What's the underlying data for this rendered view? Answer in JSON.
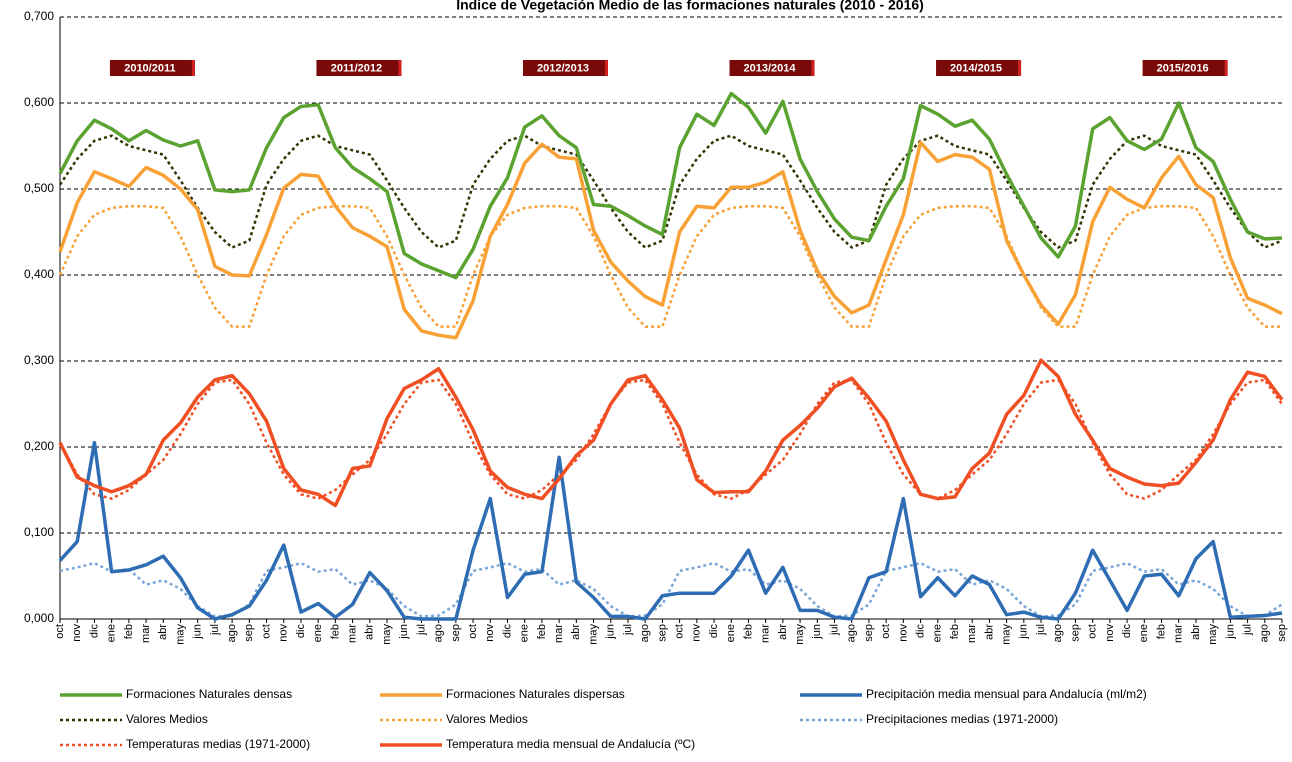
{
  "chart_data": {
    "type": "line",
    "title": "Índice de Vegetación Medio de las formaciones naturales (2010 - 2016)",
    "season_labels": [
      "2010/2011",
      "2011/2012",
      "2012/2013",
      "2013/2014",
      "2014/2015",
      "2015/2016"
    ],
    "categories": [
      "oct",
      "nov",
      "dic",
      "ene",
      "feb",
      "mar",
      "abr",
      "may",
      "jun",
      "jul",
      "ago",
      "sep",
      "oct",
      "nov",
      "dic",
      "ene",
      "feb",
      "mar",
      "abr",
      "may",
      "jun",
      "jul",
      "ago",
      "sep",
      "oct",
      "nov",
      "dic",
      "ene",
      "feb",
      "mar",
      "abr",
      "may",
      "jun",
      "jul",
      "ago",
      "sep",
      "oct",
      "nov",
      "dic",
      "ene",
      "feb",
      "mar",
      "abr",
      "may",
      "jun",
      "jul",
      "ago",
      "sep",
      "oct",
      "nov",
      "dic",
      "ene",
      "feb",
      "mar",
      "abr",
      "may",
      "jun",
      "jul",
      "ago",
      "sep",
      "oct",
      "nov",
      "dic",
      "ene",
      "feb",
      "mar",
      "abr",
      "may",
      "jun",
      "jul",
      "ago",
      "sep"
    ],
    "ylim": [
      0,
      0.7
    ],
    "yticks": [
      {
        "value": 0,
        "label": "0,000"
      },
      {
        "value": 0.1,
        "label": "0,100"
      },
      {
        "value": 0.2,
        "label": "0,200"
      },
      {
        "value": 0.3,
        "label": "0,300"
      },
      {
        "value": 0.4,
        "label": "0,400"
      },
      {
        "value": 0.5,
        "label": "0,500"
      },
      {
        "value": 0.6,
        "label": "0,600"
      },
      {
        "value": 0.7,
        "label": "0,700"
      }
    ],
    "grid": true,
    "legend": "bottom",
    "series": [
      {
        "name": "Formaciones Naturales densas",
        "color": "#5ba331",
        "dash": false,
        "values": [
          0.518,
          0.556,
          0.58,
          0.57,
          0.556,
          0.568,
          0.557,
          0.55,
          0.556,
          0.499,
          0.497,
          0.499,
          0.548,
          0.583,
          0.596,
          0.598,
          0.548,
          0.525,
          0.512,
          0.497,
          0.425,
          0.413,
          0.405,
          0.397,
          0.43,
          0.48,
          0.513,
          0.572,
          0.585,
          0.562,
          0.548,
          0.482,
          0.48,
          0.469,
          0.457,
          0.447,
          0.548,
          0.587,
          0.574,
          0.611,
          0.595,
          0.565,
          0.602,
          0.535,
          0.497,
          0.465,
          0.444,
          0.44,
          0.48,
          0.512,
          0.597,
          0.587,
          0.573,
          0.58,
          0.558,
          0.517,
          0.48,
          0.443,
          0.421,
          0.457,
          0.57,
          0.583,
          0.556,
          0.546,
          0.558,
          0.6,
          0.548,
          0.532,
          0.488,
          0.45,
          0.442,
          0.443
        ]
      },
      {
        "name": "Formaciones Naturales dispersas",
        "color": "#f7a136",
        "dash": false,
        "values": [
          0.427,
          0.484,
          0.52,
          0.512,
          0.503,
          0.525,
          0.516,
          0.5,
          0.476,
          0.41,
          0.4,
          0.399,
          0.447,
          0.501,
          0.517,
          0.515,
          0.48,
          0.455,
          0.445,
          0.433,
          0.36,
          0.335,
          0.33,
          0.327,
          0.37,
          0.445,
          0.482,
          0.53,
          0.552,
          0.537,
          0.535,
          0.452,
          0.415,
          0.393,
          0.375,
          0.365,
          0.45,
          0.48,
          0.478,
          0.502,
          0.502,
          0.508,
          0.52,
          0.452,
          0.405,
          0.375,
          0.356,
          0.365,
          0.418,
          0.47,
          0.554,
          0.532,
          0.54,
          0.537,
          0.523,
          0.44,
          0.4,
          0.365,
          0.343,
          0.377,
          0.462,
          0.502,
          0.488,
          0.478,
          0.513,
          0.538,
          0.505,
          0.49,
          0.42,
          0.373,
          0.365,
          0.355
        ]
      },
      {
        "name": "Precipitación media mensual para Andalucía (ml/m2)",
        "color": "#2e6db4",
        "dash": false,
        "values": [
          0.068,
          0.09,
          0.205,
          0.055,
          0.057,
          0.063,
          0.073,
          0.048,
          0.013,
          0.0,
          0.005,
          0.015,
          0.045,
          0.086,
          0.008,
          0.018,
          0.002,
          0.017,
          0.054,
          0.033,
          0.002,
          0.0,
          0.0,
          0.0,
          0.08,
          0.14,
          0.025,
          0.052,
          0.055,
          0.188,
          0.043,
          0.025,
          0.003,
          0.003,
          0.0,
          0.027,
          0.03,
          0.03,
          0.03,
          0.05,
          0.08,
          0.03,
          0.06,
          0.01,
          0.01,
          0.002,
          0.0,
          0.048,
          0.055,
          0.14,
          0.026,
          0.048,
          0.027,
          0.05,
          0.04,
          0.005,
          0.008,
          0.002,
          0.0,
          0.03,
          0.08,
          0.045,
          0.01,
          0.05,
          0.052,
          0.027,
          0.07,
          0.09,
          0.002,
          0.003,
          0.004,
          0.007
        ]
      },
      {
        "name": "Valores Medios",
        "color": "#333300",
        "dash": true,
        "values": [
          0.505,
          0.535,
          0.556,
          0.562,
          0.55,
          0.545,
          0.54,
          0.51,
          0.478,
          0.45,
          0.432,
          0.44,
          0.505,
          0.535,
          0.556,
          0.562,
          0.55,
          0.545,
          0.54,
          0.51,
          0.478,
          0.45,
          0.432,
          0.44,
          0.505,
          0.535,
          0.556,
          0.562,
          0.55,
          0.545,
          0.54,
          0.51,
          0.478,
          0.45,
          0.432,
          0.44,
          0.505,
          0.535,
          0.556,
          0.562,
          0.55,
          0.545,
          0.54,
          0.51,
          0.478,
          0.45,
          0.432,
          0.44,
          0.505,
          0.535,
          0.556,
          0.562,
          0.55,
          0.545,
          0.54,
          0.51,
          0.478,
          0.45,
          0.432,
          0.44,
          0.505,
          0.535,
          0.556,
          0.562,
          0.55,
          0.545,
          0.54,
          0.51,
          0.478,
          0.45,
          0.432,
          0.44
        ]
      },
      {
        "name": "Valores Medios",
        "color": "#f7a136",
        "dash": true,
        "values": [
          0.4,
          0.445,
          0.47,
          0.478,
          0.48,
          0.48,
          0.478,
          0.445,
          0.4,
          0.362,
          0.34,
          0.34,
          0.4,
          0.445,
          0.47,
          0.478,
          0.48,
          0.48,
          0.478,
          0.445,
          0.4,
          0.362,
          0.34,
          0.34,
          0.4,
          0.445,
          0.47,
          0.478,
          0.48,
          0.48,
          0.478,
          0.445,
          0.4,
          0.362,
          0.34,
          0.34,
          0.4,
          0.445,
          0.47,
          0.478,
          0.48,
          0.48,
          0.478,
          0.445,
          0.4,
          0.362,
          0.34,
          0.34,
          0.4,
          0.445,
          0.47,
          0.478,
          0.48,
          0.48,
          0.478,
          0.445,
          0.4,
          0.362,
          0.34,
          0.34,
          0.4,
          0.445,
          0.47,
          0.478,
          0.48,
          0.48,
          0.478,
          0.445,
          0.4,
          0.362,
          0.34,
          0.34
        ]
      },
      {
        "name": "Precipitaciones medias (1971-2000)",
        "color": "#7aa7d8",
        "dash": true,
        "values": [
          0.056,
          0.06,
          0.065,
          0.055,
          0.058,
          0.04,
          0.045,
          0.035,
          0.015,
          0.003,
          0.004,
          0.017,
          0.056,
          0.06,
          0.065,
          0.055,
          0.058,
          0.04,
          0.045,
          0.035,
          0.015,
          0.003,
          0.004,
          0.017,
          0.056,
          0.06,
          0.065,
          0.055,
          0.058,
          0.04,
          0.045,
          0.035,
          0.015,
          0.003,
          0.004,
          0.017,
          0.056,
          0.06,
          0.065,
          0.055,
          0.058,
          0.04,
          0.045,
          0.035,
          0.015,
          0.003,
          0.004,
          0.017,
          0.056,
          0.06,
          0.065,
          0.055,
          0.058,
          0.04,
          0.045,
          0.035,
          0.015,
          0.003,
          0.004,
          0.017,
          0.056,
          0.06,
          0.065,
          0.055,
          0.058,
          0.04,
          0.045,
          0.035,
          0.015,
          0.003,
          0.004,
          0.017
        ]
      },
      {
        "name": "Temperaturas medias (1971-2000)",
        "color": "#f04e23",
        "dash": true,
        "values": [
          0.205,
          0.168,
          0.145,
          0.14,
          0.15,
          0.168,
          0.185,
          0.215,
          0.25,
          0.275,
          0.278,
          0.25,
          0.205,
          0.168,
          0.145,
          0.14,
          0.15,
          0.168,
          0.185,
          0.215,
          0.25,
          0.275,
          0.278,
          0.25,
          0.205,
          0.168,
          0.145,
          0.14,
          0.15,
          0.168,
          0.185,
          0.215,
          0.25,
          0.275,
          0.278,
          0.25,
          0.205,
          0.168,
          0.145,
          0.14,
          0.15,
          0.168,
          0.185,
          0.215,
          0.25,
          0.275,
          0.278,
          0.25,
          0.205,
          0.168,
          0.145,
          0.14,
          0.15,
          0.168,
          0.185,
          0.215,
          0.25,
          0.275,
          0.278,
          0.25,
          0.205,
          0.168,
          0.145,
          0.14,
          0.15,
          0.168,
          0.185,
          0.215,
          0.25,
          0.275,
          0.278,
          0.25
        ]
      },
      {
        "name": "Temperatura media mensual de Andalucía (ºC)",
        "color": "#f04e23",
        "dash": false,
        "values": [
          0.205,
          0.165,
          0.155,
          0.148,
          0.155,
          0.168,
          0.208,
          0.228,
          0.258,
          0.278,
          0.283,
          0.262,
          0.23,
          0.175,
          0.15,
          0.145,
          0.132,
          0.175,
          0.178,
          0.233,
          0.268,
          0.278,
          0.291,
          0.258,
          0.22,
          0.172,
          0.153,
          0.145,
          0.14,
          0.163,
          0.19,
          0.208,
          0.25,
          0.278,
          0.283,
          0.255,
          0.222,
          0.162,
          0.147,
          0.148,
          0.148,
          0.172,
          0.208,
          0.225,
          0.245,
          0.27,
          0.28,
          0.257,
          0.23,
          0.185,
          0.145,
          0.14,
          0.142,
          0.175,
          0.193,
          0.238,
          0.26,
          0.301,
          0.282,
          0.238,
          0.208,
          0.175,
          0.165,
          0.157,
          0.155,
          0.158,
          0.182,
          0.208,
          0.255,
          0.287,
          0.282,
          0.255
        ]
      }
    ]
  }
}
